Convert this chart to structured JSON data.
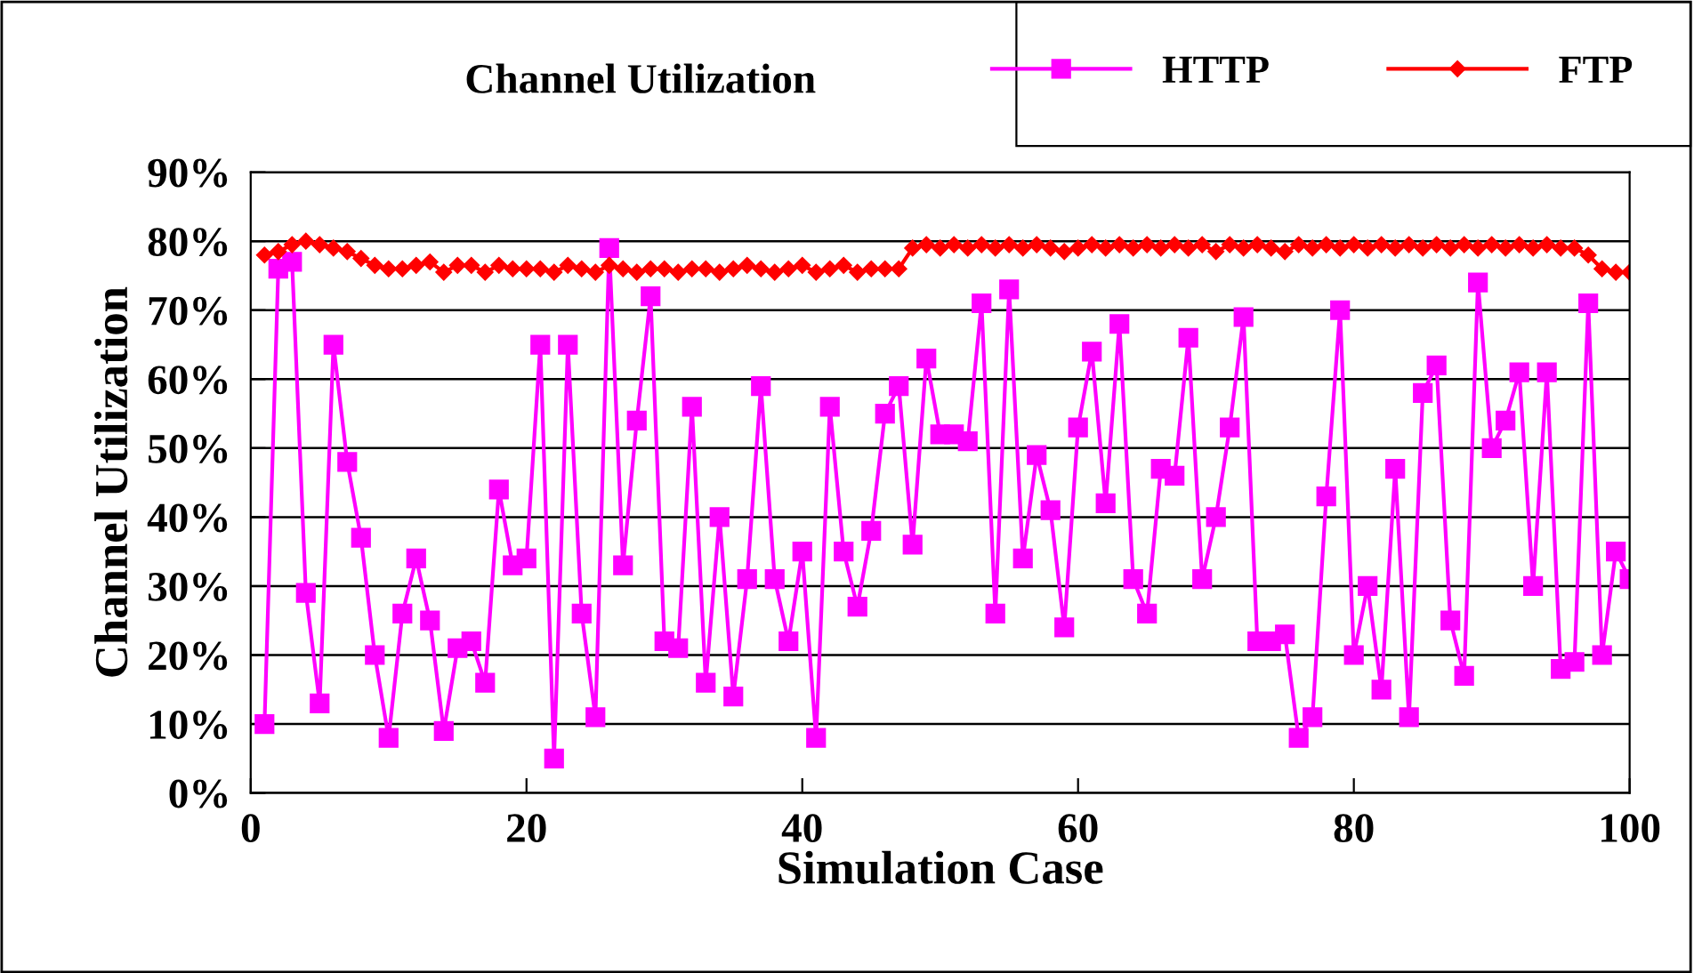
{
  "chart_data": {
    "type": "line",
    "title": "Channel Utilization",
    "xlabel": "Simulation Case",
    "ylabel": "Channel Utilization",
    "xlim": [
      0,
      100
    ],
    "xticks": [
      0,
      20,
      40,
      60,
      80,
      100
    ],
    "ylim": [
      0,
      90
    ],
    "yticks": [
      {
        "value": 0,
        "label": "0%"
      },
      {
        "value": 10,
        "label": "10%"
      },
      {
        "value": 20,
        "label": "20%"
      },
      {
        "value": 30,
        "label": "30%"
      },
      {
        "value": 40,
        "label": "40%"
      },
      {
        "value": 50,
        "label": "50%"
      },
      {
        "value": 60,
        "label": "60%"
      },
      {
        "value": 70,
        "label": "70%"
      },
      {
        "value": 80,
        "label": "80%"
      },
      {
        "value": 90,
        "label": "90%"
      }
    ],
    "grid": "y",
    "legend": "top right",
    "line_style": "solid",
    "x": [
      1,
      2,
      3,
      4,
      5,
      6,
      7,
      8,
      9,
      10,
      11,
      12,
      13,
      14,
      15,
      16,
      17,
      18,
      19,
      20,
      21,
      22,
      23,
      24,
      25,
      26,
      27,
      28,
      29,
      30,
      31,
      32,
      33,
      34,
      35,
      36,
      37,
      38,
      39,
      40,
      41,
      42,
      43,
      44,
      45,
      46,
      47,
      48,
      49,
      50,
      51,
      52,
      53,
      54,
      55,
      56,
      57,
      58,
      59,
      60,
      61,
      62,
      63,
      64,
      65,
      66,
      67,
      68,
      69,
      70,
      71,
      72,
      73,
      74,
      75,
      76,
      77,
      78,
      79,
      80,
      81,
      82,
      83,
      84,
      85,
      86,
      87,
      88,
      89,
      90,
      91,
      92,
      93,
      94,
      95,
      96,
      97,
      98,
      99,
      100
    ],
    "series": [
      {
        "name": "HTTP",
        "color": "#ff00ff",
        "marker": "square",
        "values": [
          10,
          76,
          77,
          29,
          13,
          65,
          48,
          37,
          20,
          8,
          26,
          34,
          25,
          9,
          21,
          22,
          16,
          44,
          33,
          34,
          65,
          5,
          65,
          26,
          11,
          79,
          33,
          54,
          72,
          22,
          21,
          56,
          16,
          40,
          14,
          31,
          59,
          31,
          22,
          35,
          8,
          56,
          35,
          27,
          38,
          55,
          59,
          36,
          63,
          52,
          52,
          51,
          71,
          26,
          73,
          34,
          49,
          41,
          24,
          53,
          64,
          42,
          68,
          31,
          26,
          47,
          46,
          66,
          31,
          40,
          53,
          69,
          22,
          22,
          23,
          8,
          11,
          43,
          70,
          20,
          30,
          15,
          47,
          11,
          58,
          62,
          25,
          17,
          74,
          50,
          54,
          61,
          30,
          61,
          18,
          19,
          71,
          20,
          35,
          31
        ]
      },
      {
        "name": "FTP",
        "color": "#ff0000",
        "marker": "diamond",
        "values": [
          78,
          78.5,
          79.5,
          80,
          79.5,
          79,
          78.5,
          77.5,
          76.5,
          76,
          76,
          76.5,
          77,
          75.5,
          76.5,
          76.5,
          75.5,
          76.5,
          76,
          76,
          76,
          75.5,
          76.5,
          76,
          75.5,
          76.5,
          76,
          75.5,
          76,
          76,
          75.5,
          76,
          76,
          75.5,
          76,
          76.5,
          76,
          75.5,
          76,
          76.5,
          75.5,
          76,
          76.5,
          75.5,
          76,
          76,
          76,
          79,
          79.5,
          79,
          79.5,
          79,
          79.5,
          79,
          79.5,
          79,
          79.5,
          79,
          78.5,
          79,
          79.5,
          79,
          79.5,
          79,
          79.5,
          79,
          79.5,
          79,
          79.5,
          78.5,
          79.5,
          79,
          79.5,
          79,
          78.5,
          79.5,
          79,
          79.5,
          79,
          79.5,
          79,
          79.5,
          79,
          79.5,
          79,
          79.5,
          79,
          79.5,
          79,
          79.5,
          79,
          79.5,
          79,
          79.5,
          79,
          79,
          78,
          76,
          75.5,
          75.5
        ]
      }
    ]
  }
}
